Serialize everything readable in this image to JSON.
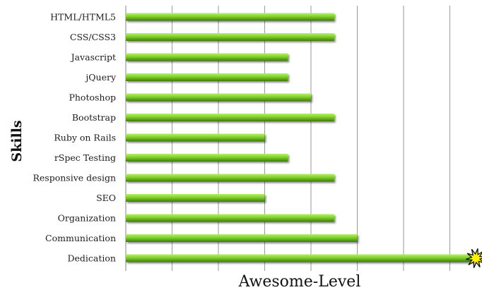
{
  "chart_data": {
    "type": "bar",
    "orientation": "horizontal",
    "title": "",
    "xlabel": "Awesome-Level",
    "ylabel": "Skills",
    "categories": [
      "HTML/HTML5",
      "CSS/CSS3",
      "Javascript",
      "jQuery",
      "Photoshop",
      "Bootstrap",
      "Ruby on Rails",
      "rSpec Testing",
      "Responsive design",
      "SEO",
      "Organization",
      "Communication",
      "Dedication"
    ],
    "values": [
      4.5,
      4.5,
      3.5,
      3.5,
      4,
      4.5,
      3,
      3.5,
      4.5,
      3,
      4.5,
      5,
      7.5
    ],
    "xlim": [
      0,
      8
    ],
    "grid": true,
    "tick_labels_visible": false,
    "legend": "none",
    "bar_color": "#7fd128",
    "bar_highlight": "#b6f06a",
    "bar_shadow": "#3f7a10",
    "grid_color": "#9a9a9a",
    "burst_icon": "starburst-icon",
    "burst_color": "#fff200"
  }
}
